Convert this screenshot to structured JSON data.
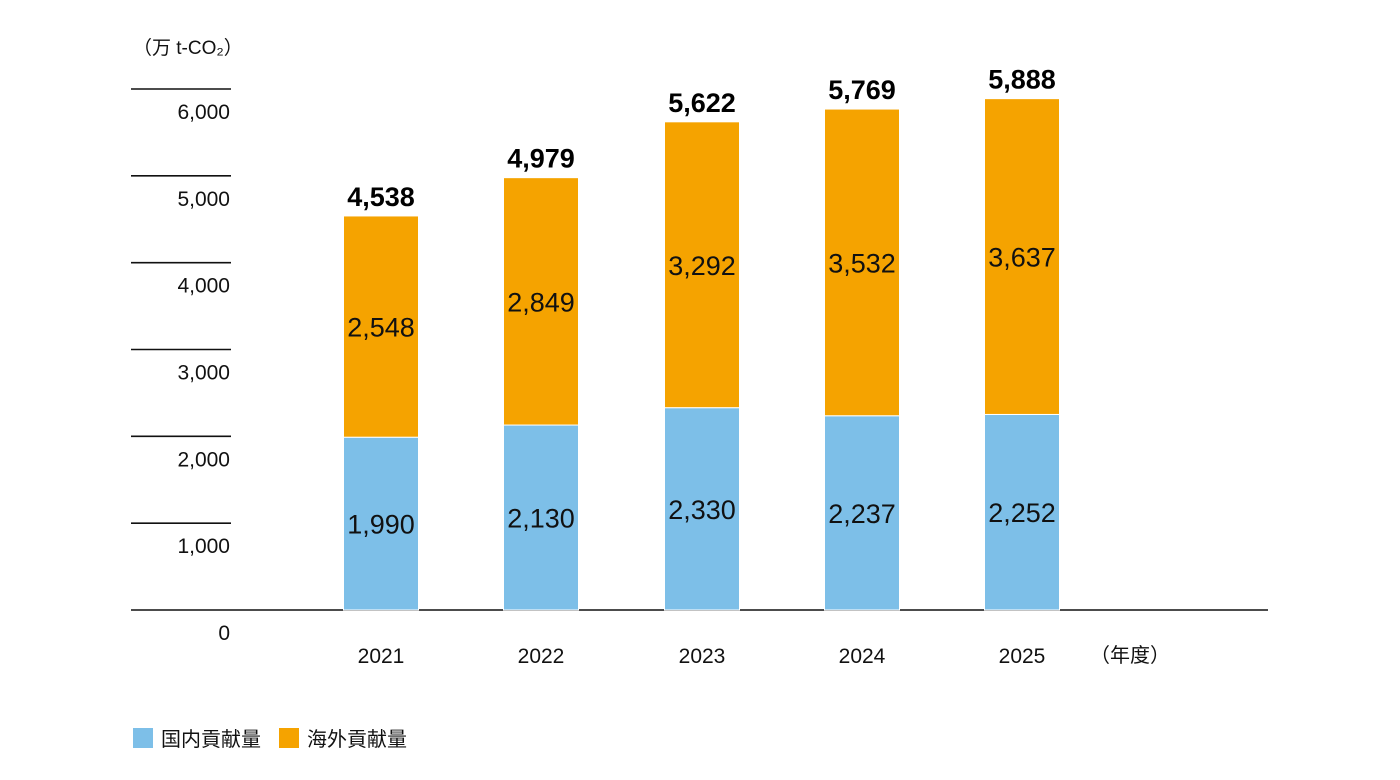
{
  "chart_data": {
    "type": "bar",
    "stacked": true,
    "ylabel": "（万 t-CO₂）",
    "xunit": "（年度）",
    "categories": [
      "2021",
      "2022",
      "2023",
      "2024",
      "2025"
    ],
    "ylim": [
      0,
      6000
    ],
    "yticks": [
      0,
      1000,
      2000,
      3000,
      4000,
      5000,
      6000
    ],
    "ytick_labels": [
      "0",
      "1,000",
      "2,000",
      "3,000",
      "4,000",
      "5,000",
      "6,000"
    ],
    "series": [
      {
        "name": "国内貢献量",
        "color": "#7DBFE8",
        "values": [
          1990,
          2130,
          2330,
          2237,
          2252
        ],
        "labels": [
          "1,990",
          "2,130",
          "2,330",
          "2,237",
          "2,252"
        ]
      },
      {
        "name": "海外貢献量",
        "color": "#F5A300",
        "values": [
          2548,
          2849,
          3292,
          3532,
          3637
        ],
        "labels": [
          "2,548",
          "2,849",
          "3,292",
          "3,532",
          "3,637"
        ]
      }
    ],
    "totals": [
      4538,
      4979,
      5622,
      5769,
      5888
    ],
    "total_labels": [
      "4,538",
      "4,979",
      "5,622",
      "5,769",
      "5,888"
    ],
    "grid": true,
    "legend_position": "bottom-left"
  }
}
